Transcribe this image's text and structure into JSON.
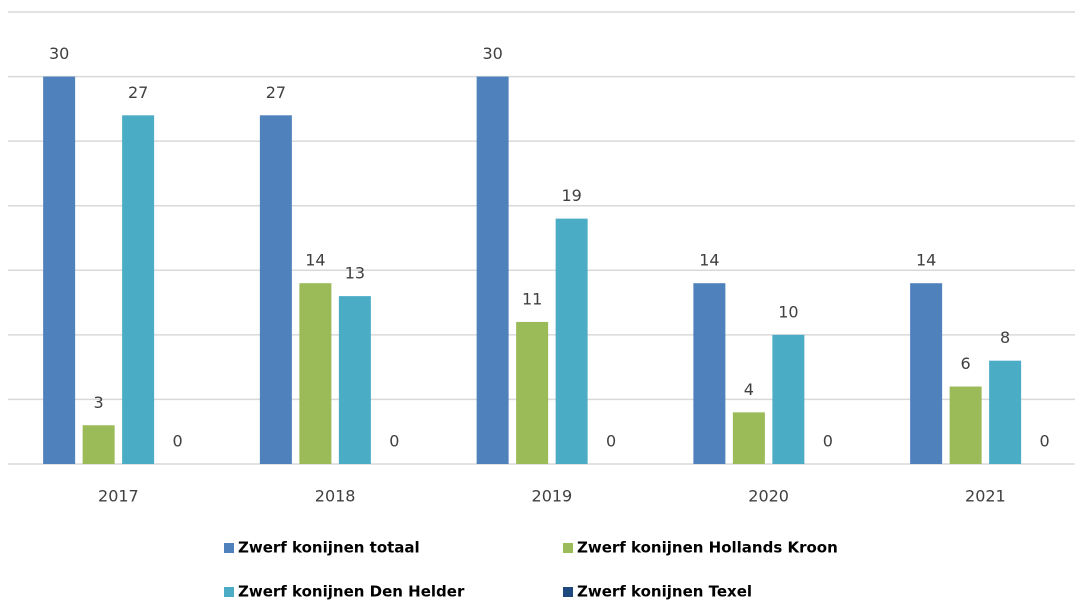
{
  "chart_data": {
    "type": "bar",
    "categories": [
      "2017",
      "2018",
      "2019",
      "2020",
      "2021"
    ],
    "series": [
      {
        "name": "Zwerf konijnen totaal",
        "color": "#4f81bd",
        "values": [
          30,
          27,
          30,
          14,
          14
        ]
      },
      {
        "name": "Zwerf konijnen Hollands Kroon",
        "color": "#9bbb59",
        "values": [
          3,
          14,
          11,
          4,
          6
        ]
      },
      {
        "name": "Zwerf konijnen Den Helder",
        "color": "#4bacc6",
        "values": [
          27,
          13,
          19,
          10,
          8
        ]
      },
      {
        "name": "Zwerf konijnen Texel",
        "color": "#1f497d",
        "values": [
          0,
          0,
          0,
          0,
          0
        ]
      }
    ],
    "ylim": [
      0,
      35
    ],
    "yticks": [
      0,
      5,
      10,
      15,
      20,
      25,
      30,
      35
    ],
    "grid": true,
    "legend": "bottom"
  }
}
